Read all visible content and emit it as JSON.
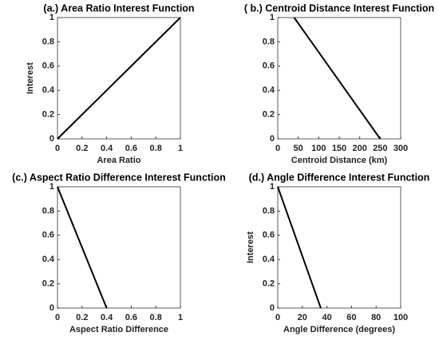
{
  "chart_data": [
    {
      "type": "line",
      "title": "(a.) Area Ratio Interest Function",
      "xlabel": "Area Ratio",
      "ylabel": "Interest",
      "x": [
        0,
        1
      ],
      "values": [
        0,
        1
      ],
      "color": "#000000",
      "xlim": [
        0,
        1
      ],
      "xticks": [
        0,
        0.2,
        0.4,
        0.6,
        0.8,
        1
      ],
      "ylim": [
        0,
        1
      ],
      "yticks": [
        0,
        0.2,
        0.4,
        0.6,
        0.8,
        1
      ]
    },
    {
      "type": "line",
      "title": "( b.) Centroid Distance Interest Function",
      "xlabel": "Centroid Distance (km)",
      "x": [
        40,
        250
      ],
      "values": [
        1,
        0
      ],
      "color": "#000000",
      "xlim": [
        0,
        300
      ],
      "xticks": [
        0,
        50,
        100,
        150,
        200,
        250,
        300
      ],
      "ylim": [
        0,
        1
      ],
      "yticks": [
        0,
        0.2,
        0.4,
        0.6,
        0.8,
        1
      ]
    },
    {
      "type": "line",
      "title": "(c.) Aspect Ratio Difference Interest Function",
      "xlabel": "Aspect Ratio Difference",
      "x": [
        0,
        0.4
      ],
      "values": [
        1,
        0
      ],
      "color": "#000000",
      "xlim": [
        0,
        1
      ],
      "xticks": [
        0,
        0.2,
        0.4,
        0.6,
        0.8,
        1
      ],
      "ylim": [
        0,
        1
      ],
      "yticks": [
        0,
        0.2,
        0.4,
        0.6,
        0.8,
        1
      ]
    },
    {
      "type": "line",
      "title": "(d.) Angle Difference Interest Function",
      "xlabel": "Angle Difference (degrees)",
      "ylabel": "Interest",
      "x": [
        0,
        35
      ],
      "values": [
        1,
        0
      ],
      "color": "#000000",
      "xlim": [
        0,
        100
      ],
      "xticks": [
        0,
        20,
        40,
        60,
        80,
        100
      ],
      "ylim": [
        0,
        1
      ],
      "yticks": [
        0,
        0.2,
        0.4,
        0.6,
        0.8,
        1
      ]
    }
  ]
}
